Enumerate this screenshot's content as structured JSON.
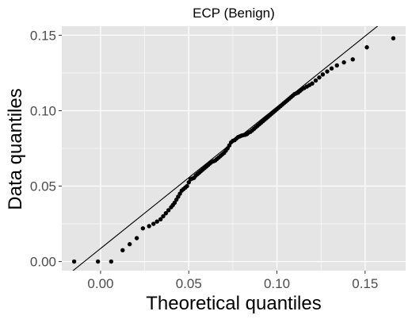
{
  "chart_data": {
    "type": "scatter",
    "title": "ECP (Benign)",
    "xlabel": "Theoretical quantiles",
    "ylabel": "Data quantiles",
    "xlim": [
      -0.022,
      0.173
    ],
    "ylim": [
      -0.006,
      0.156
    ],
    "x_ticks": [
      0.0,
      0.05,
      0.1,
      0.15
    ],
    "x_tick_labels": [
      "0.00",
      "0.05",
      "0.10",
      "0.15"
    ],
    "y_ticks": [
      0.0,
      0.05,
      0.1,
      0.15
    ],
    "y_tick_labels": [
      "0.00",
      "0.05",
      "0.10",
      "0.15"
    ],
    "grid": true,
    "background": "#e5e5e5",
    "grid_color": "#ffffff",
    "point_color": "#000000",
    "reference_line": {
      "x1": -0.022,
      "y1": -0.012,
      "x2": 0.173,
      "y2": 0.171
    },
    "points": {
      "x": [
        -0.015,
        -0.0015,
        0.006,
        0.0125,
        0.0165,
        0.0205,
        0.024,
        0.0275,
        0.03,
        0.032,
        0.034,
        0.0355,
        0.037,
        0.0385,
        0.04,
        0.041,
        0.042,
        0.043,
        0.044,
        0.045,
        0.046,
        0.047,
        0.048,
        0.049,
        0.05,
        0.051,
        0.052,
        0.053,
        0.054,
        0.055,
        0.056,
        0.057,
        0.058,
        0.059,
        0.06,
        0.061,
        0.062,
        0.063,
        0.064,
        0.065,
        0.066,
        0.067,
        0.068,
        0.069,
        0.07,
        0.071,
        0.072,
        0.073,
        0.074,
        0.075,
        0.076,
        0.077,
        0.078,
        0.079,
        0.08,
        0.081,
        0.082,
        0.083,
        0.084,
        0.085,
        0.086,
        0.087,
        0.088,
        0.089,
        0.09,
        0.091,
        0.092,
        0.093,
        0.094,
        0.095,
        0.096,
        0.097,
        0.098,
        0.099,
        0.1,
        0.101,
        0.102,
        0.103,
        0.104,
        0.105,
        0.106,
        0.107,
        0.108,
        0.109,
        0.11,
        0.111,
        0.112,
        0.113,
        0.114,
        0.1155,
        0.117,
        0.1185,
        0.12,
        0.122,
        0.124,
        0.126,
        0.1285,
        0.131,
        0.134,
        0.138,
        0.143,
        0.151,
        0.166
      ],
      "y": [
        0.0,
        0.0,
        0.0,
        0.0075,
        0.0115,
        0.0155,
        0.022,
        0.0235,
        0.025,
        0.0265,
        0.028,
        0.03,
        0.032,
        0.034,
        0.036,
        0.0375,
        0.039,
        0.041,
        0.043,
        0.045,
        0.047,
        0.048,
        0.049,
        0.05,
        0.0525,
        0.0545,
        0.055,
        0.0555,
        0.057,
        0.058,
        0.059,
        0.06,
        0.061,
        0.062,
        0.063,
        0.064,
        0.065,
        0.066,
        0.0665,
        0.067,
        0.068,
        0.069,
        0.07,
        0.071,
        0.072,
        0.0735,
        0.075,
        0.077,
        0.079,
        0.08,
        0.0805,
        0.0815,
        0.0825,
        0.083,
        0.0835,
        0.0838,
        0.084,
        0.0845,
        0.0855,
        0.086,
        0.087,
        0.088,
        0.089,
        0.09,
        0.091,
        0.092,
        0.093,
        0.094,
        0.095,
        0.096,
        0.097,
        0.098,
        0.099,
        0.1,
        0.101,
        0.102,
        0.103,
        0.104,
        0.105,
        0.106,
        0.107,
        0.108,
        0.109,
        0.11,
        0.111,
        0.1115,
        0.112,
        0.113,
        0.114,
        0.115,
        0.116,
        0.117,
        0.118,
        0.12,
        0.122,
        0.124,
        0.126,
        0.128,
        0.13,
        0.132,
        0.134,
        0.142,
        0.148
      ]
    }
  }
}
